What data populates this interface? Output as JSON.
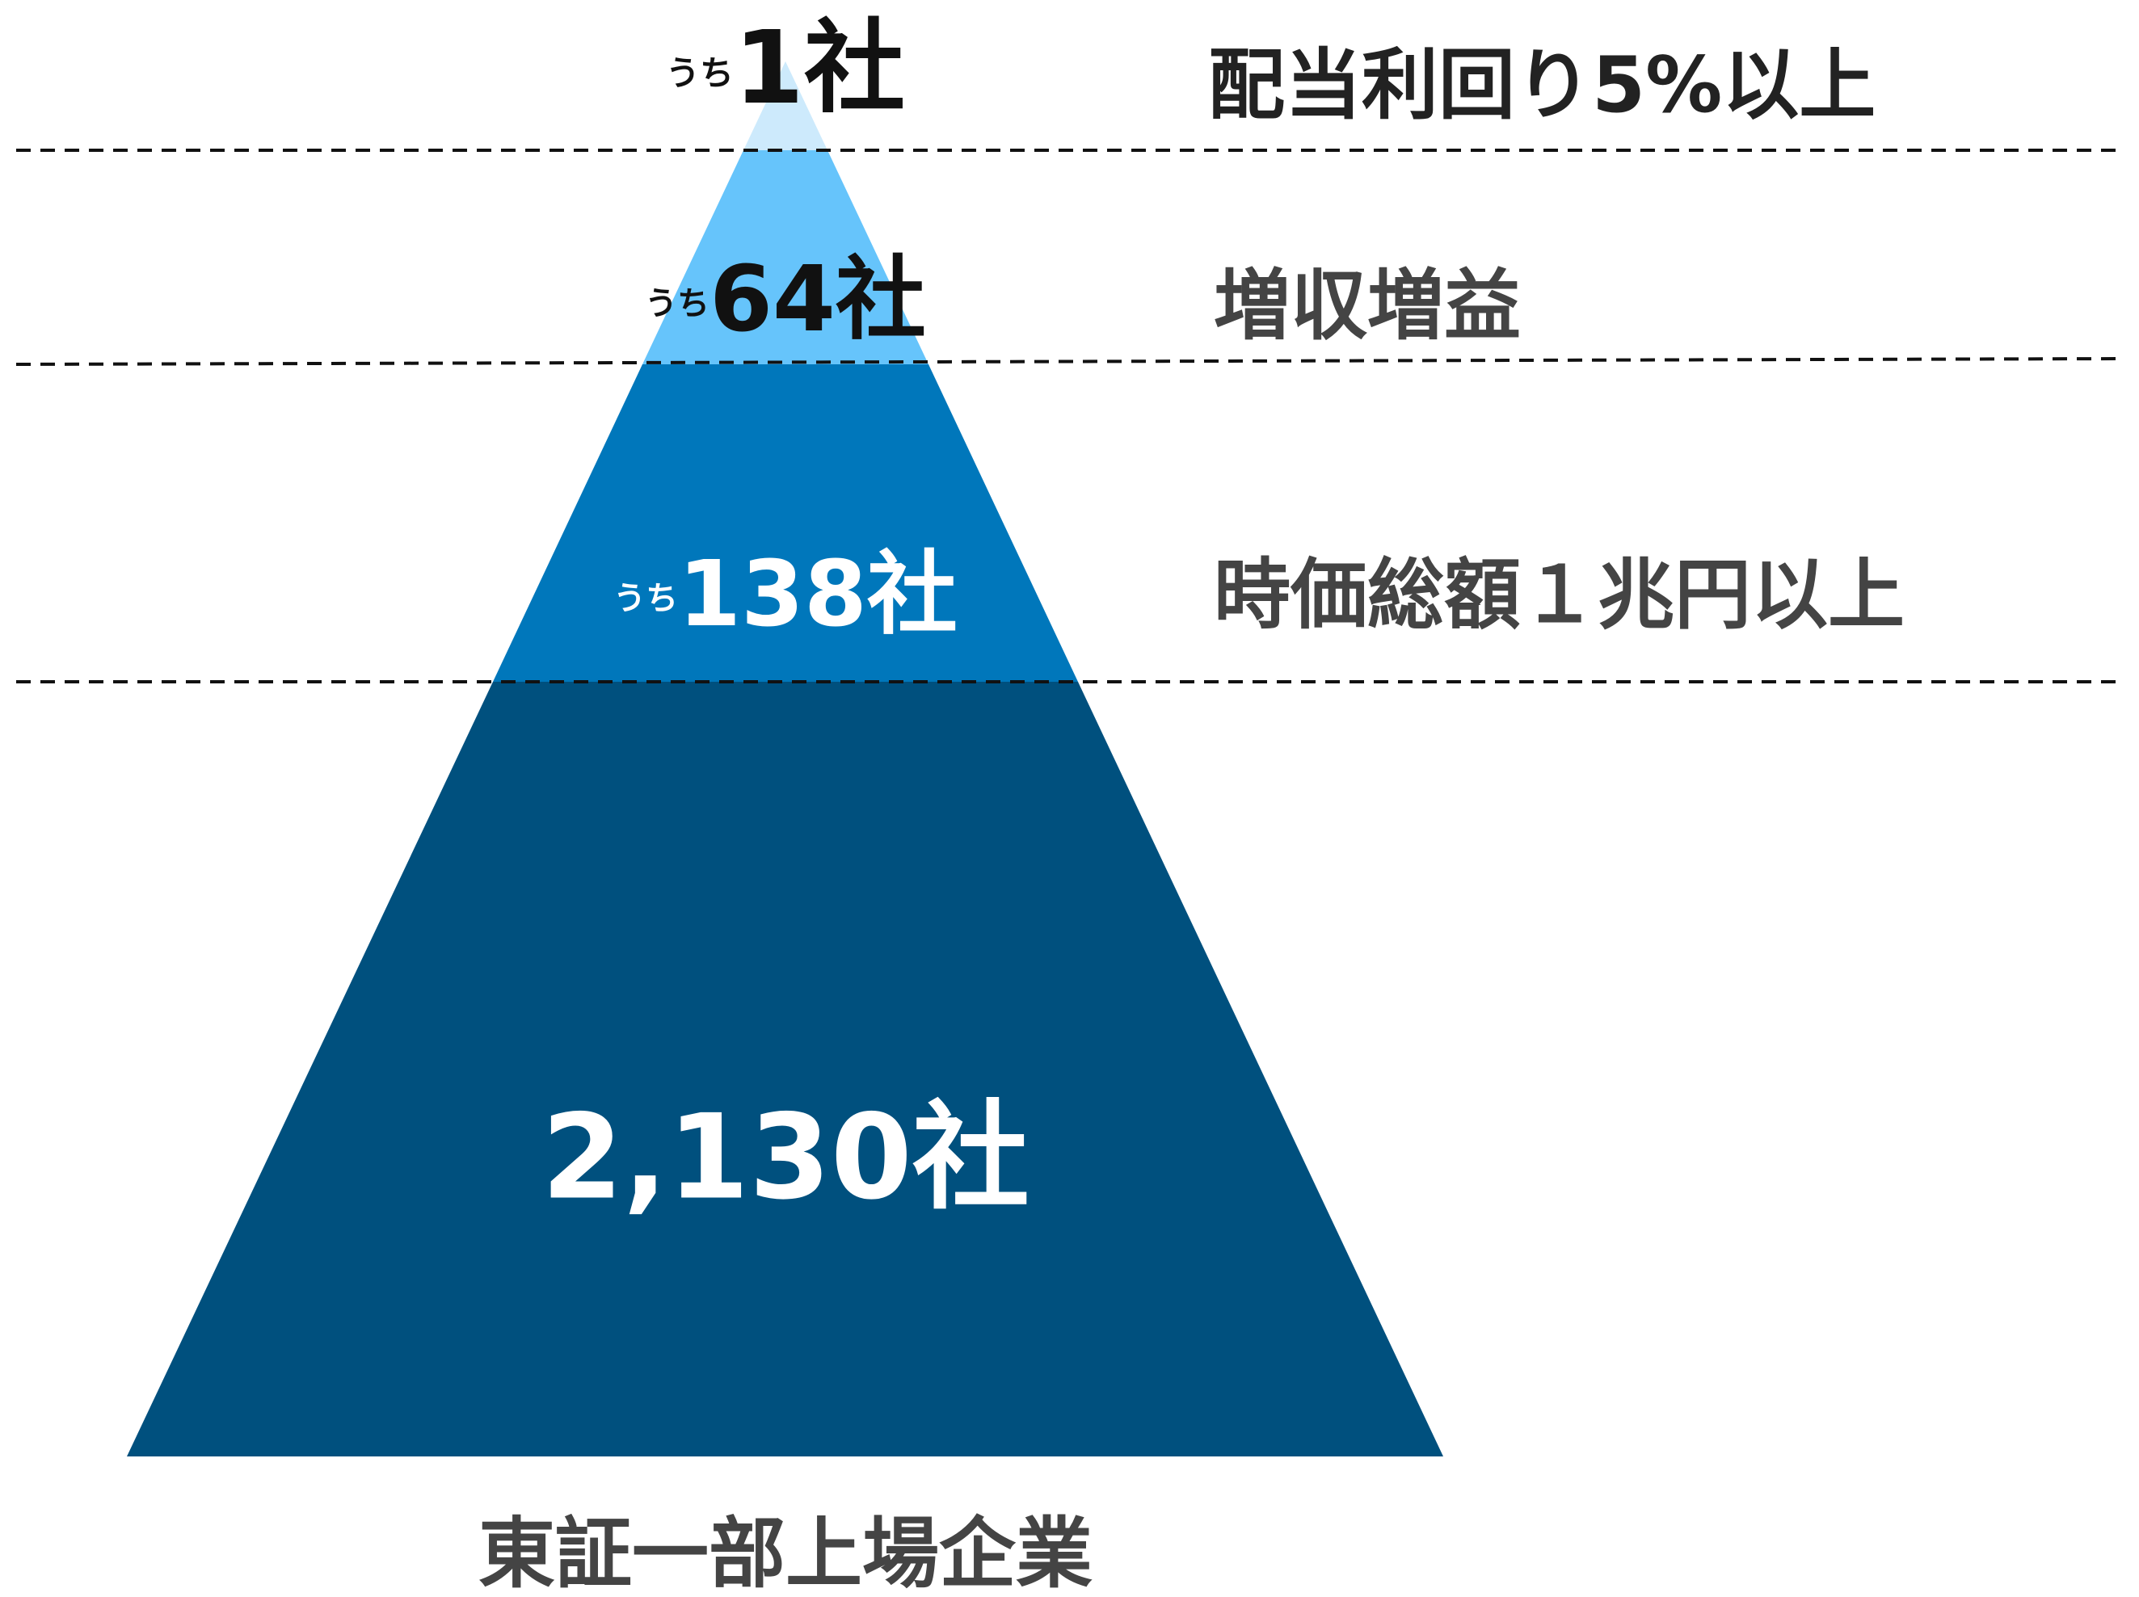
{
  "levels": [
    {
      "prefix": "うち",
      "count": "1社",
      "label": "配当利回り5%以上"
    },
    {
      "prefix": "うち",
      "count": "64社",
      "label": "増収増益"
    },
    {
      "prefix": "うち",
      "count": "138社",
      "label": "時価総額１兆円以上"
    }
  ],
  "base": {
    "count": "2,130社",
    "caption": "東証一部上場企業"
  }
}
